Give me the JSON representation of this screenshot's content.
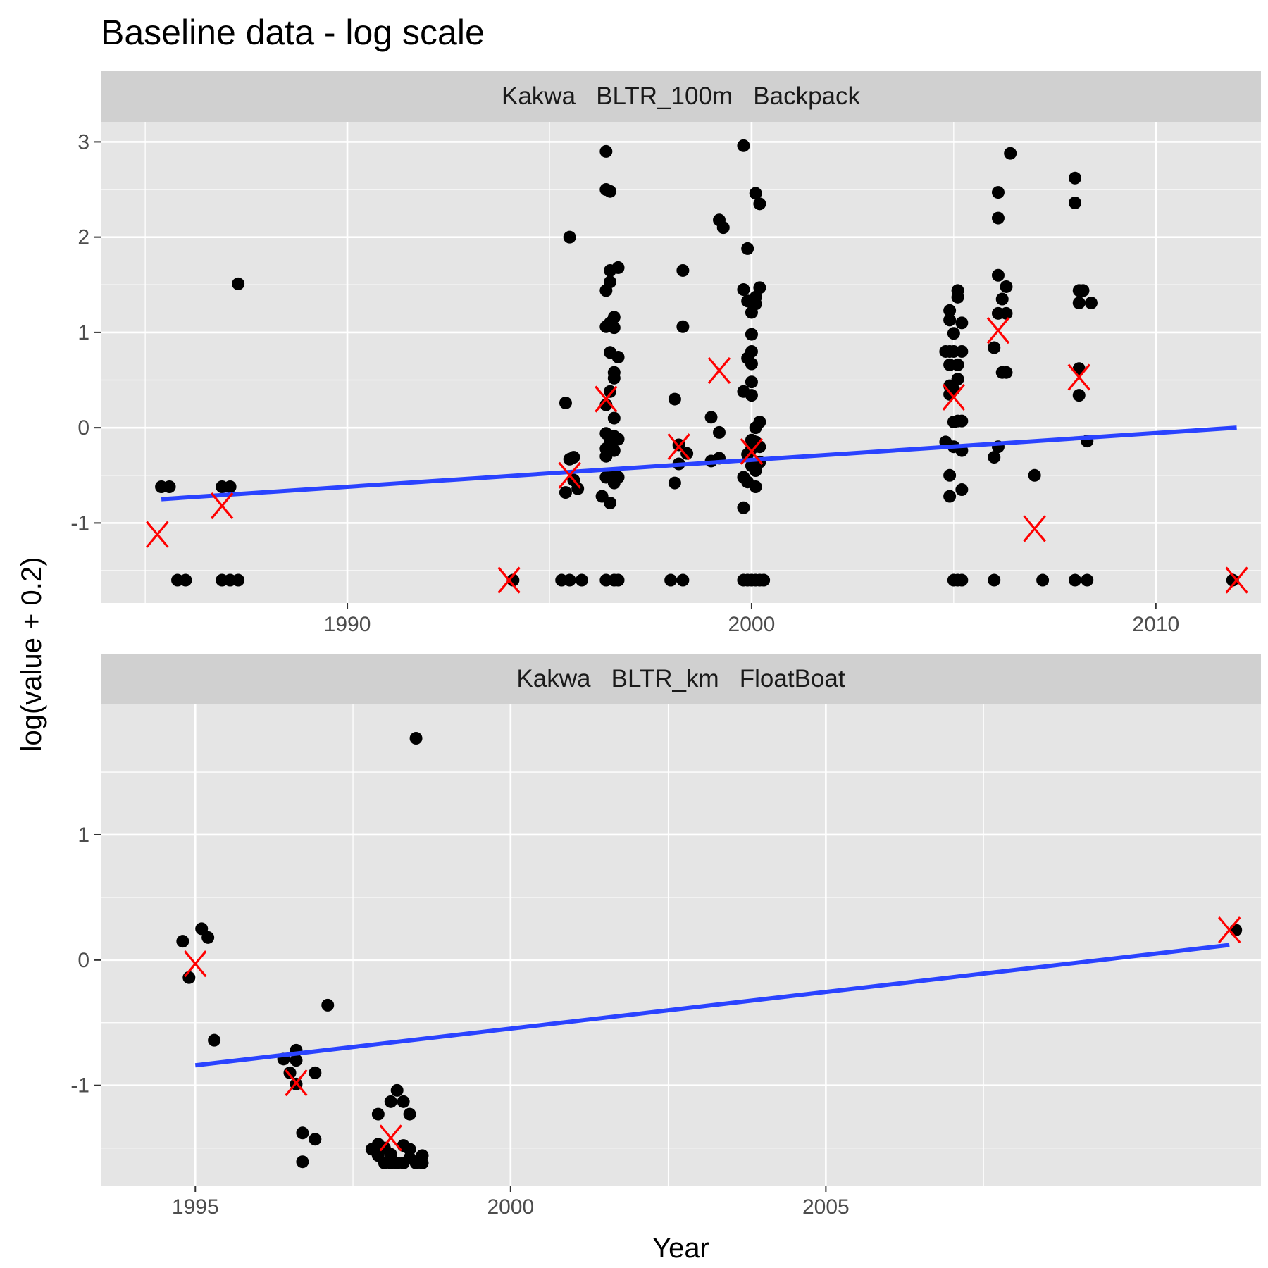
{
  "title": "Baseline data - log scale",
  "xlabel": "Year",
  "ylabel": "log(value + 0.2)",
  "colors": {
    "panel_bg": "#e5e5e5",
    "strip_bg": "#d0d0d0",
    "grid": "#ffffff",
    "points": "#000000",
    "means": "#ff0000",
    "trend": "#2a43ff"
  },
  "chart_data": [
    {
      "type": "scatter",
      "facet_label": "Kakwa   BLTR_100m   Backpack",
      "xlim": [
        1983.9,
        2012.6
      ],
      "ylim": [
        -1.84,
        3.21
      ],
      "x_ticks": [
        1990,
        2000,
        2010
      ],
      "x_tick_labels": [
        "1990",
        "2000",
        "2010"
      ],
      "y_ticks": [
        -1,
        0,
        1,
        2,
        3
      ],
      "y_tick_labels": [
        "-1",
        "0",
        "1",
        "2",
        "3"
      ],
      "grid": true,
      "points": [
        [
          1985.4,
          -0.62
        ],
        [
          1985.6,
          -0.62
        ],
        [
          1985.8,
          -1.6
        ],
        [
          1986.0,
          -1.6
        ],
        [
          1986.9,
          -0.62
        ],
        [
          1987.1,
          -0.62
        ],
        [
          1986.9,
          -1.6
        ],
        [
          1987.1,
          -1.6
        ],
        [
          1987.3,
          -1.6
        ],
        [
          1987.3,
          1.51
        ],
        [
          1994.1,
          -1.6
        ],
        [
          1995.4,
          0.26
        ],
        [
          1995.6,
          -0.31
        ],
        [
          1995.5,
          -0.33
        ],
        [
          1995.4,
          -0.68
        ],
        [
          1995.7,
          -0.64
        ],
        [
          1995.6,
          -0.55
        ],
        [
          1995.5,
          2.0
        ],
        [
          1995.3,
          -1.6
        ],
        [
          1995.5,
          -1.6
        ],
        [
          1995.8,
          -1.6
        ],
        [
          1996.4,
          2.9
        ],
        [
          1996.4,
          2.5
        ],
        [
          1996.5,
          2.48
        ],
        [
          1996.5,
          1.65
        ],
        [
          1996.7,
          1.68
        ],
        [
          1996.5,
          1.53
        ],
        [
          1996.4,
          1.44
        ],
        [
          1996.6,
          1.16
        ],
        [
          1996.5,
          1.1
        ],
        [
          1996.4,
          1.06
        ],
        [
          1996.6,
          1.05
        ],
        [
          1996.5,
          0.79
        ],
        [
          1996.7,
          0.74
        ],
        [
          1996.6,
          0.58
        ],
        [
          1996.6,
          0.52
        ],
        [
          1996.5,
          0.38
        ],
        [
          1996.4,
          0.24
        ],
        [
          1996.6,
          0.1
        ],
        [
          1996.4,
          -0.06
        ],
        [
          1996.6,
          -0.09
        ],
        [
          1996.7,
          -0.12
        ],
        [
          1996.5,
          -0.15
        ],
        [
          1996.4,
          -0.22
        ],
        [
          1996.6,
          -0.24
        ],
        [
          1996.4,
          -0.3
        ],
        [
          1996.6,
          -0.5
        ],
        [
          1996.7,
          -0.52
        ],
        [
          1996.4,
          -0.52
        ],
        [
          1996.6,
          -0.58
        ],
        [
          1996.3,
          -0.72
        ],
        [
          1996.5,
          -0.79
        ],
        [
          1996.4,
          -1.6
        ],
        [
          1996.6,
          -1.6
        ],
        [
          1996.7,
          -1.6
        ],
        [
          1998.1,
          0.3
        ],
        [
          1998.3,
          1.65
        ],
        [
          1998.3,
          1.06
        ],
        [
          1998.2,
          -0.18
        ],
        [
          1998.4,
          -0.27
        ],
        [
          1998.2,
          -0.38
        ],
        [
          1998.1,
          -0.58
        ],
        [
          1998.0,
          -1.6
        ],
        [
          1998.3,
          -1.6
        ],
        [
          1999.2,
          2.18
        ],
        [
          1999.3,
          2.1
        ],
        [
          1999.0,
          0.11
        ],
        [
          1999.2,
          -0.05
        ],
        [
          1999.2,
          -0.32
        ],
        [
          1999.0,
          -0.35
        ],
        [
          1999.8,
          2.96
        ],
        [
          2000.1,
          2.46
        ],
        [
          2000.2,
          2.35
        ],
        [
          1999.9,
          1.88
        ],
        [
          1999.8,
          1.45
        ],
        [
          2000.2,
          1.47
        ],
        [
          2000.1,
          1.37
        ],
        [
          1999.9,
          1.33
        ],
        [
          2000.1,
          1.3
        ],
        [
          2000.0,
          1.21
        ],
        [
          2000.0,
          0.98
        ],
        [
          2000.0,
          0.8
        ],
        [
          1999.9,
          0.73
        ],
        [
          2000.0,
          0.67
        ],
        [
          2000.0,
          0.48
        ],
        [
          1999.8,
          0.38
        ],
        [
          2000.0,
          0.34
        ],
        [
          2000.2,
          0.06
        ],
        [
          2000.1,
          0.0
        ],
        [
          2000.0,
          -0.13
        ],
        [
          2000.1,
          -0.15
        ],
        [
          2000.2,
          -0.2
        ],
        [
          2000.0,
          -0.22
        ],
        [
          1999.9,
          -0.28
        ],
        [
          2000.2,
          -0.36
        ],
        [
          2000.0,
          -0.4
        ],
        [
          2000.1,
          -0.45
        ],
        [
          1999.8,
          -0.52
        ],
        [
          1999.9,
          -0.57
        ],
        [
          2000.1,
          -0.62
        ],
        [
          1999.8,
          -0.84
        ],
        [
          1999.8,
          -1.6
        ],
        [
          1999.9,
          -1.6
        ],
        [
          2000.0,
          -1.6
        ],
        [
          2000.1,
          -1.6
        ],
        [
          2000.2,
          -1.6
        ],
        [
          2000.3,
          -1.6
        ],
        [
          2004.9,
          1.23
        ],
        [
          2005.1,
          1.44
        ],
        [
          2005.1,
          1.37
        ],
        [
          2004.9,
          1.13
        ],
        [
          2005.2,
          1.1
        ],
        [
          2005.0,
          0.99
        ],
        [
          2004.8,
          0.8
        ],
        [
          2004.9,
          0.8
        ],
        [
          2005.0,
          0.8
        ],
        [
          2005.2,
          0.8
        ],
        [
          2004.9,
          0.66
        ],
        [
          2005.1,
          0.66
        ],
        [
          2005.1,
          0.51
        ],
        [
          2004.9,
          0.44
        ],
        [
          2005.0,
          0.4
        ],
        [
          2004.9,
          0.35
        ],
        [
          2005.0,
          0.06
        ],
        [
          2005.2,
          0.07
        ],
        [
          2005.1,
          0.07
        ],
        [
          2004.8,
          -0.15
        ],
        [
          2005.0,
          -0.2
        ],
        [
          2005.2,
          -0.24
        ],
        [
          2004.9,
          -0.5
        ],
        [
          2005.2,
          -0.65
        ],
        [
          2004.9,
          -0.72
        ],
        [
          2005.0,
          -1.6
        ],
        [
          2005.1,
          -1.6
        ],
        [
          2005.2,
          -1.6
        ],
        [
          2006.1,
          2.47
        ],
        [
          2006.1,
          2.2
        ],
        [
          2006.4,
          2.88
        ],
        [
          2006.1,
          1.6
        ],
        [
          2006.3,
          1.48
        ],
        [
          2006.2,
          1.35
        ],
        [
          2006.1,
          1.2
        ],
        [
          2006.3,
          1.2
        ],
        [
          2006.0,
          0.84
        ],
        [
          2006.2,
          0.58
        ],
        [
          2006.3,
          0.58
        ],
        [
          2006.1,
          -0.2
        ],
        [
          2006.0,
          -0.31
        ],
        [
          2006.0,
          -1.6
        ],
        [
          2007.0,
          -0.5
        ],
        [
          2007.2,
          -1.6
        ],
        [
          2008.0,
          2.62
        ],
        [
          2008.0,
          2.36
        ],
        [
          2008.2,
          1.44
        ],
        [
          2008.1,
          1.44
        ],
        [
          2008.1,
          1.31
        ],
        [
          2008.4,
          1.31
        ],
        [
          2008.1,
          0.62
        ],
        [
          2008.1,
          0.34
        ],
        [
          2008.3,
          -0.14
        ],
        [
          2008.0,
          -1.6
        ],
        [
          2008.3,
          -1.6
        ],
        [
          2011.9,
          -1.6
        ]
      ],
      "means": [
        [
          1985.3,
          -1.12
        ],
        [
          1986.9,
          -0.82
        ],
        [
          1994.0,
          -1.6
        ],
        [
          1995.5,
          -0.5
        ],
        [
          1996.4,
          0.3
        ],
        [
          1998.2,
          -0.2
        ],
        [
          1999.2,
          0.6
        ],
        [
          2000.0,
          -0.25
        ],
        [
          2005.0,
          0.32
        ],
        [
          2006.1,
          1.02
        ],
        [
          2007.0,
          -1.06
        ],
        [
          2008.1,
          0.53
        ],
        [
          2012.0,
          -1.6
        ]
      ],
      "trend": [
        [
          1985.4,
          -0.75
        ],
        [
          2012.0,
          0.0
        ]
      ]
    },
    {
      "type": "scatter",
      "facet_label": "Kakwa   BLTR_km   FloatBoat",
      "xlim": [
        1993.5,
        2011.9
      ],
      "ylim": [
        -1.8,
        2.04
      ],
      "x_ticks": [
        1995,
        2000,
        2005
      ],
      "x_tick_labels": [
        "1995",
        "2000",
        "2005"
      ],
      "y_ticks": [
        -1,
        0,
        1
      ],
      "y_tick_labels": [
        "-1",
        "0",
        "1"
      ],
      "grid": true,
      "points": [
        [
          1994.8,
          0.15
        ],
        [
          1995.1,
          0.25
        ],
        [
          1995.2,
          0.18
        ],
        [
          1994.9,
          -0.14
        ],
        [
          1995.3,
          -0.64
        ],
        [
          1996.6,
          -0.72
        ],
        [
          1996.4,
          -0.79
        ],
        [
          1996.6,
          -0.8
        ],
        [
          1996.5,
          -0.9
        ],
        [
          1996.9,
          -0.9
        ],
        [
          1996.6,
          -0.99
        ],
        [
          1997.1,
          -0.36
        ],
        [
          1996.7,
          -1.38
        ],
        [
          1996.9,
          -1.43
        ],
        [
          1996.7,
          -1.61
        ],
        [
          1997.9,
          -1.23
        ],
        [
          1998.1,
          -1.13
        ],
        [
          1998.2,
          -1.04
        ],
        [
          1998.3,
          -1.13
        ],
        [
          1998.4,
          -1.23
        ],
        [
          1998.5,
          1.77
        ],
        [
          1997.9,
          -1.47
        ],
        [
          1997.8,
          -1.51
        ],
        [
          1998.0,
          -1.5
        ],
        [
          1998.3,
          -1.48
        ],
        [
          1998.4,
          -1.51
        ],
        [
          1997.9,
          -1.56
        ],
        [
          1998.1,
          -1.55
        ],
        [
          1998.4,
          -1.58
        ],
        [
          1998.6,
          -1.56
        ],
        [
          1998.0,
          -1.62
        ],
        [
          1998.1,
          -1.62
        ],
        [
          1998.2,
          -1.62
        ],
        [
          1998.3,
          -1.62
        ],
        [
          1998.5,
          -1.62
        ],
        [
          1998.6,
          -1.62
        ],
        [
          2011.5,
          0.24
        ]
      ],
      "means": [
        [
          1995.0,
          -0.03
        ],
        [
          1996.6,
          -0.98
        ],
        [
          1998.1,
          -1.42
        ],
        [
          2011.4,
          0.24
        ]
      ],
      "trend": [
        [
          1995.0,
          -0.84
        ],
        [
          2011.4,
          0.12
        ]
      ]
    }
  ]
}
